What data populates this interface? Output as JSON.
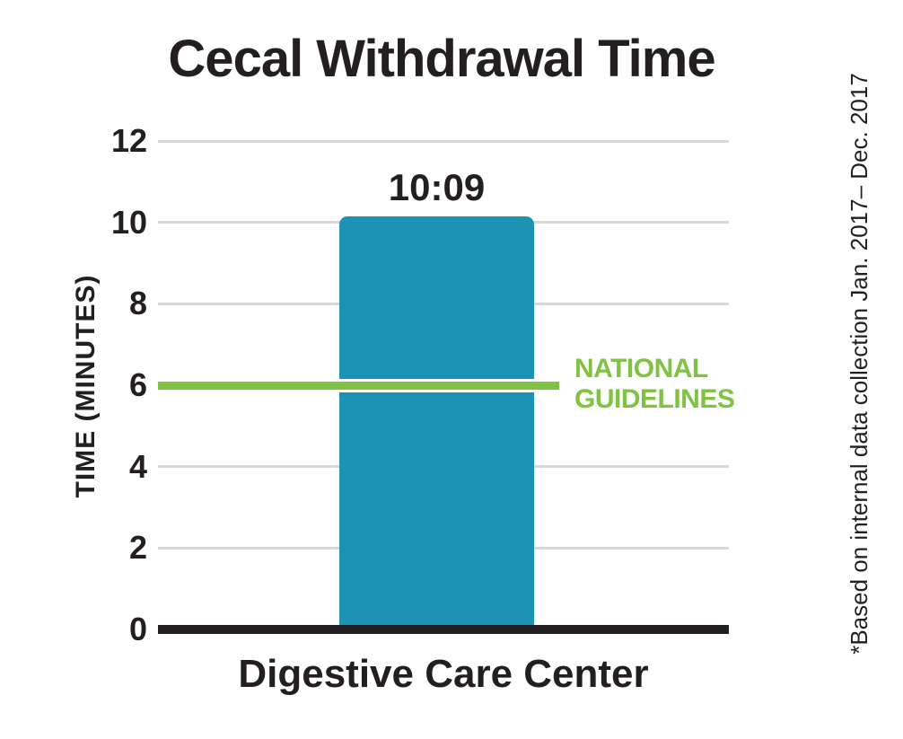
{
  "chart_data": {
    "type": "bar",
    "title": "Cecal Withdrawal Time",
    "ylabel": "TIME (MINUTES)",
    "xlabel": "",
    "ylim": [
      0,
      12
    ],
    "yticks": [
      12,
      10,
      8,
      6,
      4,
      2,
      0
    ],
    "grid": true,
    "legend_position": "none",
    "categories": [
      "Digestive Care Center"
    ],
    "values": [
      10.15
    ],
    "bar_value_label": "10:09",
    "reference_line": {
      "value": 6,
      "label": "NATIONAL GUIDELINES",
      "lines": [
        "NATIONAL",
        "GUIDELINES"
      ],
      "color": "#80c242"
    },
    "footnote": "*Based on internal data collection Jan. 2017– Dec. 2017",
    "colors": {
      "bar": "#1c93b4",
      "gridline": "#d9d9d9",
      "axis": "#231f20",
      "text": "#231f20",
      "guideline_green": "#80c242",
      "background": "#ffffff"
    }
  }
}
